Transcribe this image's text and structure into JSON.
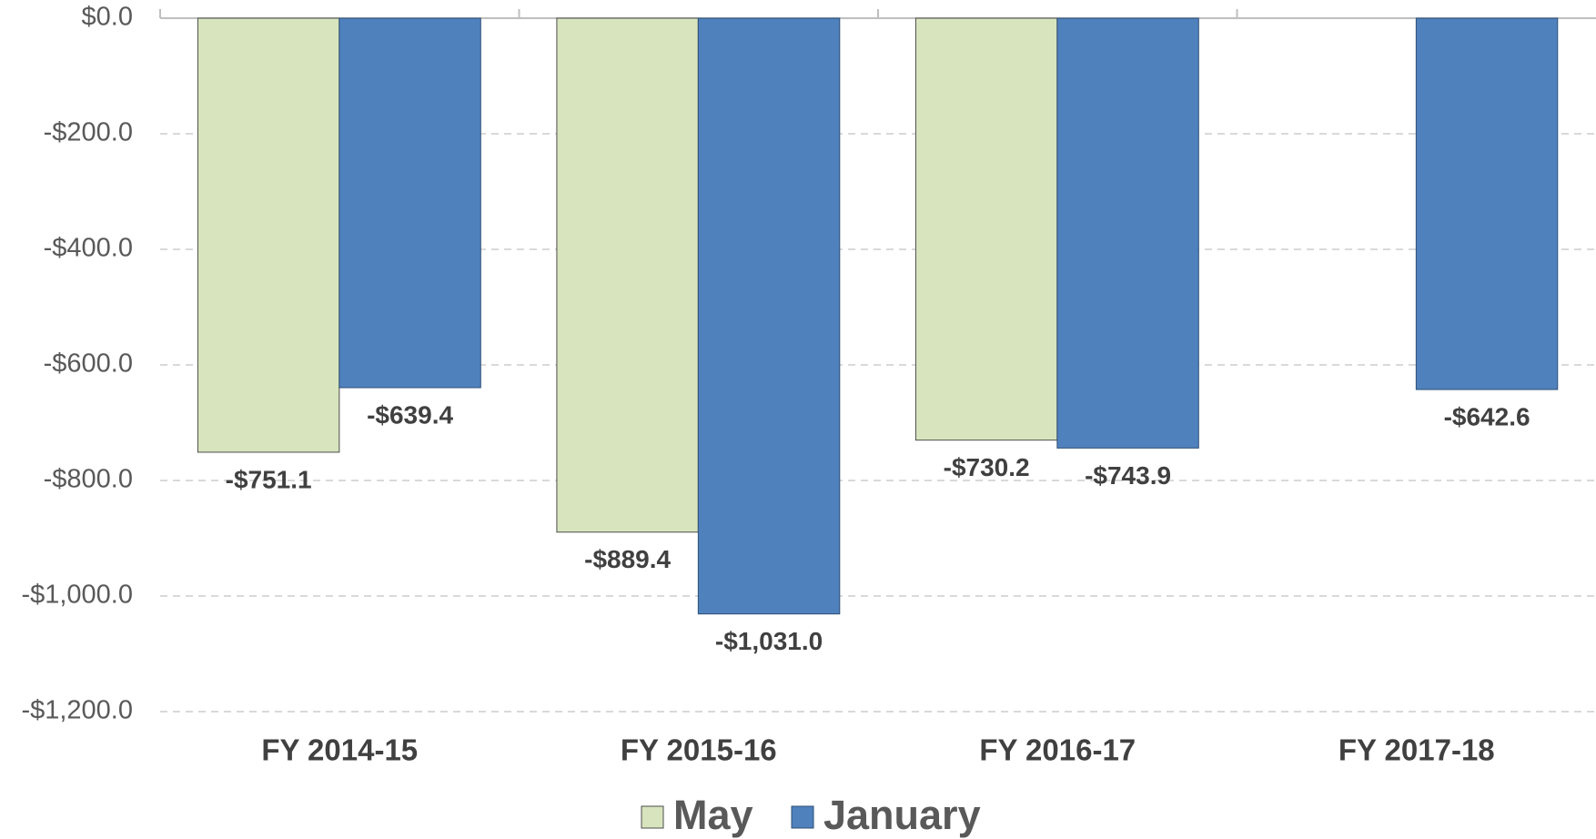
{
  "chart_data": {
    "type": "bar",
    "categories": [
      "FY 2014-15",
      "FY 2015-16",
      "FY 2016-17",
      "FY 2017-18"
    ],
    "series": [
      {
        "name": "May",
        "color": "#d7e4bd",
        "values": [
          -751.1,
          -889.4,
          -730.2,
          null
        ],
        "value_labels": [
          "-$751.1",
          "-$889.4",
          "-$730.2",
          null
        ]
      },
      {
        "name": "January",
        "color": "#4f81bd",
        "values": [
          -639.4,
          -1031.0,
          -743.9,
          -642.6
        ],
        "value_labels": [
          "-$639.4",
          "-$1,031.0",
          "-$743.9",
          "-$642.6"
        ]
      }
    ],
    "ylim": [
      -1200,
      0
    ],
    "yticks": [
      {
        "value": 0,
        "label": "$0.0"
      },
      {
        "value": -200,
        "label": "-$200.0"
      },
      {
        "value": -400,
        "label": "-$400.0"
      },
      {
        "value": -600,
        "label": "-$600.0"
      },
      {
        "value": -800,
        "label": "-$800.0"
      },
      {
        "value": -1000,
        "label": "-$1,000.0"
      },
      {
        "value": -1200,
        "label": "-$1,200.0"
      }
    ],
    "grid": true,
    "legend": "bottom"
  }
}
